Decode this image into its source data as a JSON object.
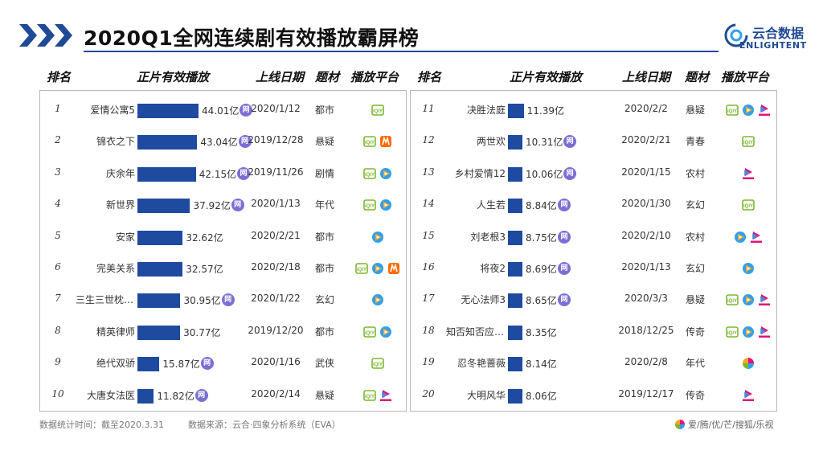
{
  "title": "2020Q1全网连续剧有效播放霸屏榜",
  "logo": {
    "cn": "云合数据",
    "en": "ENLIGHTENT"
  },
  "headers": {
    "rank": "排名",
    "views": "正片有效播放",
    "date": "上线日期",
    "genre": "题材",
    "platform": "播放平台"
  },
  "net_label": "网",
  "colors": {
    "bar": "#1e4aa0",
    "accent": "#1f4a95",
    "net_badge": "#7b6fd6",
    "iqiyi": "#7cb82f",
    "tencent_a": "#2fa0f0",
    "tencent_b": "#f5a623",
    "youku": "#e6127a",
    "mgtv": "#ff6a00"
  },
  "footer": {
    "stat_time": "数据统计时间：截至2020.3.31",
    "source": "数据来源：云合·四象分析系统（EVA）",
    "platforms": "爱/腾/优/芒/搜狐/乐视"
  },
  "chart_data": {
    "type": "bar",
    "title": "2020Q1全网连续剧有效播放霸屏榜",
    "unit": "亿",
    "rows": [
      {
        "rank": "1",
        "name": "爱情公寓5",
        "value": 44.01,
        "label": "44.01亿",
        "net": true,
        "date": "2020/1/12",
        "genre": "都市",
        "platforms": [
          "iqiyi"
        ]
      },
      {
        "rank": "2",
        "name": "锦衣之下",
        "value": 43.04,
        "label": "43.04亿",
        "net": true,
        "date": "2019/12/28",
        "genre": "悬疑",
        "platforms": [
          "iqiyi",
          "mgtv"
        ]
      },
      {
        "rank": "3",
        "name": "庆余年",
        "value": 42.15,
        "label": "42.15亿",
        "net": true,
        "date": "2019/11/26",
        "genre": "剧情",
        "platforms": [
          "iqiyi",
          "tencent"
        ]
      },
      {
        "rank": "4",
        "name": "新世界",
        "value": 37.92,
        "label": "37.92亿",
        "net": true,
        "date": "2020/1/13",
        "genre": "年代",
        "platforms": [
          "iqiyi",
          "tencent"
        ]
      },
      {
        "rank": "5",
        "name": "安家",
        "value": 32.62,
        "label": "32.62亿",
        "net": false,
        "date": "2020/2/21",
        "genre": "都市",
        "platforms": [
          "tencent"
        ]
      },
      {
        "rank": "6",
        "name": "完美关系",
        "value": 32.57,
        "label": "32.57亿",
        "net": false,
        "date": "2020/2/18",
        "genre": "都市",
        "platforms": [
          "iqiyi",
          "tencent",
          "mgtv"
        ]
      },
      {
        "rank": "7",
        "name": "三生三世枕上书",
        "value": 30.95,
        "label": "30.95亿",
        "net": true,
        "date": "2020/1/22",
        "genre": "玄幻",
        "platforms": [
          "tencent"
        ]
      },
      {
        "rank": "8",
        "name": "精英律师",
        "value": 30.77,
        "label": "30.77亿",
        "net": false,
        "date": "2019/12/20",
        "genre": "都市",
        "platforms": [
          "iqiyi",
          "tencent"
        ]
      },
      {
        "rank": "9",
        "name": "绝代双骄",
        "value": 15.87,
        "label": "15.87亿",
        "net": true,
        "date": "2020/1/16",
        "genre": "武侠",
        "platforms": [
          "iqiyi"
        ]
      },
      {
        "rank": "10",
        "name": "大唐女法医",
        "value": 11.82,
        "label": "11.82亿",
        "net": true,
        "date": "2020/2/14",
        "genre": "悬疑",
        "platforms": [
          "iqiyi",
          "youku"
        ]
      },
      {
        "rank": "11",
        "name": "决胜法庭",
        "value": 11.39,
        "label": "11.39亿",
        "net": false,
        "date": "2020/2/2",
        "genre": "悬疑",
        "platforms": [
          "iqiyi",
          "tencent",
          "youku"
        ]
      },
      {
        "rank": "12",
        "name": "两世欢",
        "value": 10.31,
        "label": "10.31亿",
        "net": true,
        "date": "2020/2/21",
        "genre": "青春",
        "platforms": [
          "iqiyi"
        ]
      },
      {
        "rank": "13",
        "name": "乡村爱情12",
        "value": 10.06,
        "label": "10.06亿",
        "net": true,
        "date": "2020/1/15",
        "genre": "农村",
        "platforms": [
          "youku"
        ]
      },
      {
        "rank": "14",
        "name": "人生若",
        "value": 8.84,
        "label": "8.84亿",
        "net": true,
        "date": "2020/1/30",
        "genre": "玄幻",
        "platforms": [
          "iqiyi"
        ]
      },
      {
        "rank": "15",
        "name": "刘老根3",
        "value": 8.75,
        "label": "8.75亿",
        "net": true,
        "date": "2020/2/10",
        "genre": "农村",
        "platforms": [
          "tencent",
          "youku"
        ]
      },
      {
        "rank": "16",
        "name": "将夜2",
        "value": 8.69,
        "label": "8.69亿",
        "net": true,
        "date": "2020/1/13",
        "genre": "玄幻",
        "platforms": [
          "tencent"
        ]
      },
      {
        "rank": "17",
        "name": "无心法师3",
        "value": 8.65,
        "label": "8.65亿",
        "net": true,
        "date": "2020/3/3",
        "genre": "悬疑",
        "platforms": [
          "iqiyi",
          "tencent",
          "youku"
        ]
      },
      {
        "rank": "18",
        "name": "知否知否应是绿肥红瘦",
        "value": 8.35,
        "label": "8.35亿",
        "net": false,
        "date": "2018/12/25",
        "genre": "传奇",
        "platforms": [
          "iqiyi",
          "tencent",
          "youku"
        ]
      },
      {
        "rank": "19",
        "name": "忍冬艳蔷薇",
        "value": 8.14,
        "label": "8.14亿",
        "net": false,
        "date": "2020/2/8",
        "genre": "年代",
        "platforms": [
          "all"
        ]
      },
      {
        "rank": "20",
        "name": "大明风华",
        "value": 8.06,
        "label": "8.06亿",
        "net": false,
        "date": "2019/12/17",
        "genre": "传奇",
        "platforms": [
          "youku"
        ]
      }
    ]
  }
}
